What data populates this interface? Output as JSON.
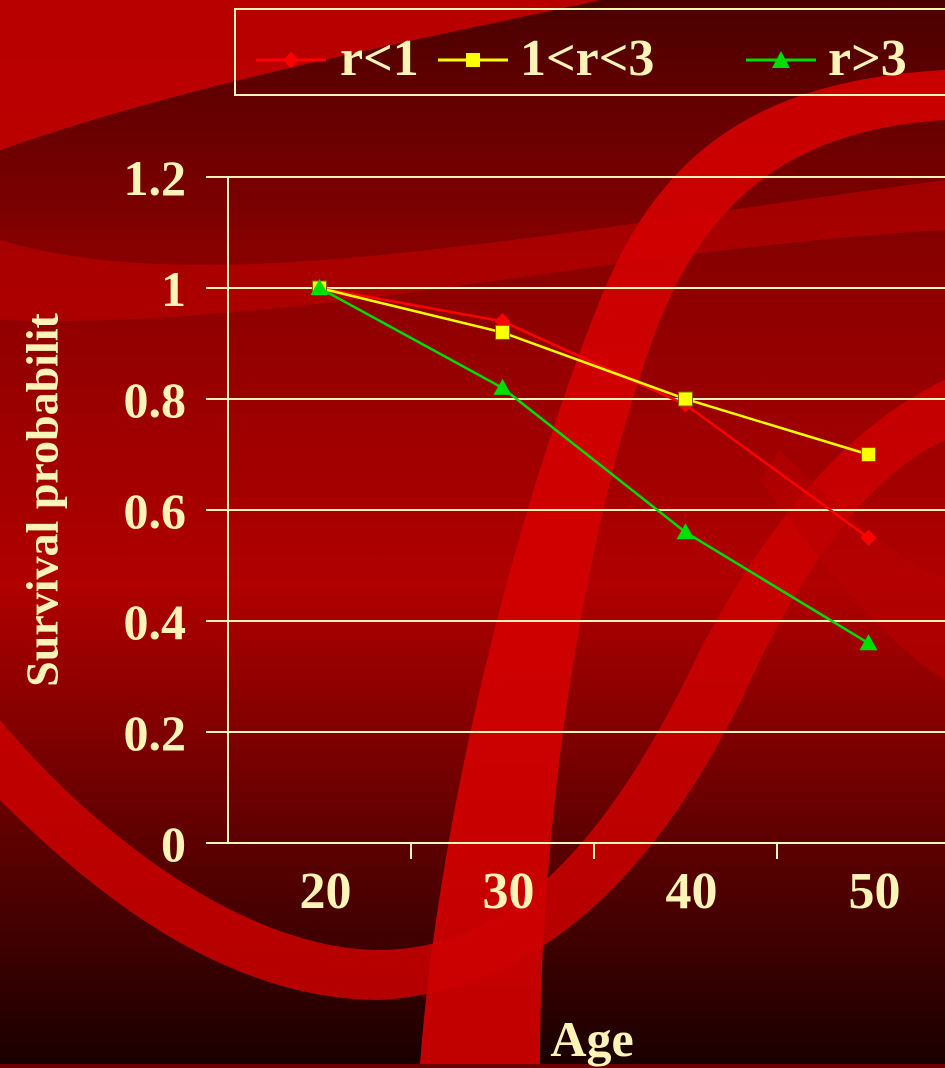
{
  "chart_data": {
    "type": "line",
    "x": [
      "20",
      "30",
      "40",
      "50"
    ],
    "series": [
      {
        "name": "r<1",
        "values": [
          1.0,
          0.94,
          0.79,
          0.55
        ],
        "color": "#ff0000",
        "marker": "diamond"
      },
      {
        "name": "1<r<3",
        "values": [
          1.0,
          0.92,
          0.8,
          0.7
        ],
        "color": "#ffff00",
        "marker": "square"
      },
      {
        "name": "r>3",
        "values": [
          1.0,
          0.82,
          0.56,
          0.36
        ],
        "color": "#00dd00",
        "marker": "triangle"
      }
    ],
    "y_ticks": [
      "0",
      "0.2",
      "0.4",
      "0.6",
      "0.8",
      "1",
      "1.2"
    ],
    "ylim": [
      0,
      1.2
    ],
    "xlabel": "Age",
    "ylabel": "Survival probabilit",
    "grid": true,
    "legend_position": "top"
  },
  "colors": {
    "text": "#fff4b8",
    "grid": "#fff4b8",
    "background_dark": "#2a0000",
    "background_red": "#cc0000"
  }
}
